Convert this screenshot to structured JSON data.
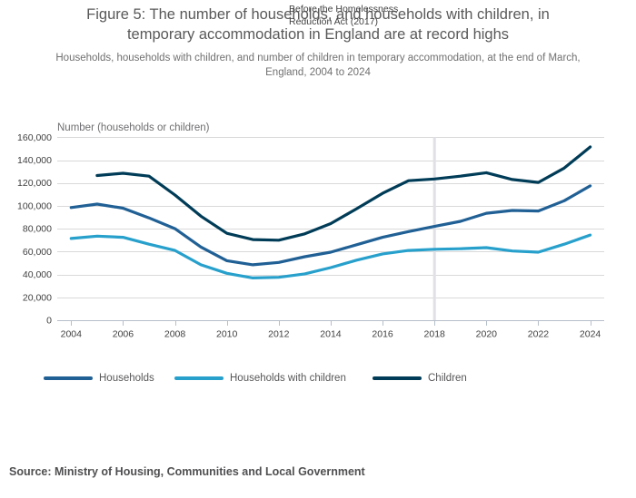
{
  "header": {
    "title_line1": "Figure 5: The number of households, and households with children, in",
    "title_line2": "temporary accommodation in England are at record highs",
    "subtitle_line1": "Households, households with children, and number of children in temporary accommodation, at the end of March,",
    "subtitle_line2": "England, 2004 to 2024"
  },
  "annotation": {
    "line1": "Before the Homelessness",
    "line2": "Reduction Act (2017)"
  },
  "chart_data": {
    "type": "line",
    "title": "Figure 5: The number of households, and households with children, in temporary accommodation in England are at record highs",
    "subtitle": "Households, households with children, and number of children in temporary accommodation, at the end of March, England, 2004 to 2024",
    "y_axis_title": "Number (households or children)",
    "xlabel": "",
    "ylabel": "Number (households or children)",
    "ylim": [
      0,
      160000
    ],
    "xlim": [
      2004,
      2024
    ],
    "grid": "horizontal",
    "legend_position": "bottom-left",
    "x": [
      2004,
      2005,
      2006,
      2007,
      2008,
      2009,
      2010,
      2011,
      2012,
      2013,
      2014,
      2015,
      2016,
      2017,
      2018,
      2019,
      2020,
      2021,
      2022,
      2023,
      2024
    ],
    "x_ticks": [
      2004,
      2006,
      2008,
      2010,
      2012,
      2014,
      2016,
      2018,
      2020,
      2022,
      2024
    ],
    "x_tick_labels": [
      "2004",
      "2006",
      "2008",
      "2010",
      "2012",
      "2014",
      "2016",
      "2018",
      "2020",
      "2022",
      "2024"
    ],
    "y_ticks": [
      0,
      20000,
      40000,
      60000,
      80000,
      100000,
      120000,
      140000,
      160000
    ],
    "y_tick_labels": [
      "0",
      "20,000",
      "40,000",
      "60,000",
      "80,000",
      "100,000",
      "120,000",
      "140,000",
      "160,000"
    ],
    "reference_line": {
      "x": 2018,
      "label": "Before the Homelessness Reduction Act (2017)",
      "color": "#e0e0e6"
    },
    "series": [
      {
        "name": "Households",
        "color": "#206095",
        "values": [
          98500,
          101500,
          98000,
          89500,
          80000,
          64000,
          52000,
          48500,
          50500,
          55500,
          59500,
          66000,
          72500,
          77500,
          82000,
          86500,
          93500,
          96000,
          95500,
          104500,
          117500
        ]
      },
      {
        "name": "Households with children",
        "color": "#27a0cc",
        "values": [
          71500,
          73500,
          72500,
          66500,
          61000,
          48500,
          41000,
          37000,
          37500,
          40500,
          46000,
          52500,
          58000,
          61000,
          62000,
          62500,
          63500,
          60500,
          59500,
          66500,
          74500
        ]
      },
      {
        "name": "Children",
        "color": "#003c57",
        "values": [
          null,
          126500,
          128500,
          126000,
          109500,
          91000,
          76000,
          70500,
          70000,
          75500,
          84500,
          97500,
          111000,
          122000,
          123500,
          126000,
          129000,
          123000,
          120500,
          133000,
          151500
        ]
      }
    ],
    "colors": {
      "grid": "#d9d9d9",
      "axis": "#b6bfc9",
      "tick_label": "#414042"
    }
  },
  "source": {
    "text": "Source: Ministry of Housing, Communities and Local Government"
  }
}
